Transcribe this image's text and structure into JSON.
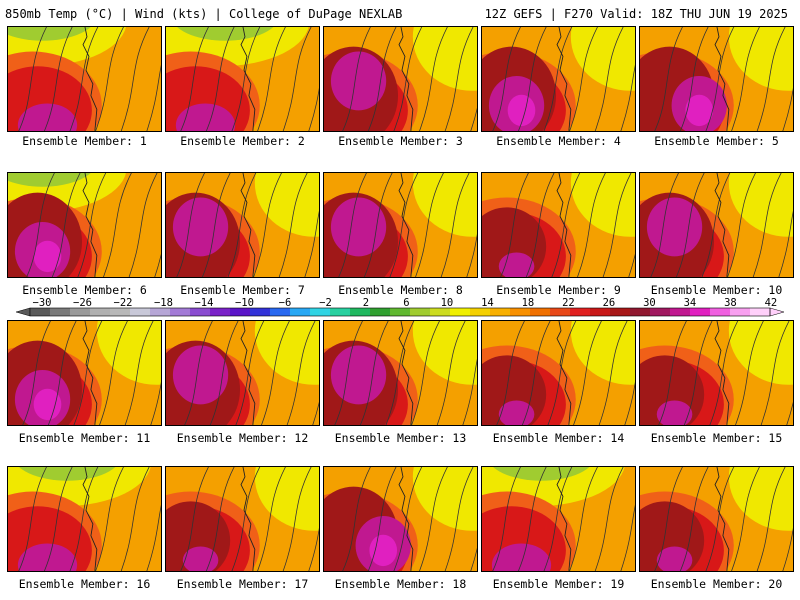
{
  "header": {
    "left_title": "850mb Temp (°C) | Wind (kts) | College of DuPage NEXLAB",
    "right_title": "12Z GEFS | F270 Valid: 18Z THU JUN 19 2025"
  },
  "members": [
    {
      "label": "Ensemble Member: 1",
      "scheme": "cool-nw"
    },
    {
      "label": "Ensemble Member: 2",
      "scheme": "cool-n"
    },
    {
      "label": "Ensemble Member: 3",
      "scheme": "hot-w"
    },
    {
      "label": "Ensemble Member: 4",
      "scheme": "hot-sw"
    },
    {
      "label": "Ensemble Member: 5",
      "scheme": "hot-s"
    },
    {
      "label": "Ensemble Member: 6",
      "scheme": "cool-nw-hot"
    },
    {
      "label": "Ensemble Member: 7",
      "scheme": "hot-w"
    },
    {
      "label": "Ensemble Member: 8",
      "scheme": "hot-w"
    },
    {
      "label": "Ensemble Member: 9",
      "scheme": "warm"
    },
    {
      "label": "Ensemble Member: 10",
      "scheme": "hot-w"
    },
    {
      "label": "Ensemble Member: 11",
      "scheme": "hot-sw"
    },
    {
      "label": "Ensemble Member: 12",
      "scheme": "hot-w"
    },
    {
      "label": "Ensemble Member: 13",
      "scheme": "hot-w"
    },
    {
      "label": "Ensemble Member: 14",
      "scheme": "warm"
    },
    {
      "label": "Ensemble Member: 15",
      "scheme": "warm"
    },
    {
      "label": "Ensemble Member: 16",
      "scheme": "cool-n"
    },
    {
      "label": "Ensemble Member: 17",
      "scheme": "warm"
    },
    {
      "label": "Ensemble Member: 18",
      "scheme": "hot-s"
    },
    {
      "label": "Ensemble Member: 19",
      "scheme": "cool-n"
    },
    {
      "label": "Ensemble Member: 20",
      "scheme": "warm"
    }
  ],
  "colorbar": {
    "tick_labels": [
      "−30",
      "−26",
      "−22",
      "−18",
      "−14",
      "−10",
      "−6",
      "−2",
      "2",
      "6",
      "10",
      "14",
      "18",
      "22",
      "26",
      "30",
      "34",
      "38",
      "42"
    ],
    "colors": [
      "#5a5a5a",
      "#7a7a7a",
      "#9a9a9a",
      "#b0b0b0",
      "#b8b8b8",
      "#c8c8d8",
      "#b6a6d6",
      "#a27ad6",
      "#8a4cd0",
      "#7a22c8",
      "#5a14c8",
      "#3232d8",
      "#2868f0",
      "#28a8f4",
      "#30d4e4",
      "#28d0a0",
      "#20b860",
      "#30a030",
      "#60b830",
      "#a0cc30",
      "#ccdc20",
      "#f0f000",
      "#f4d000",
      "#f8b000",
      "#f89000",
      "#f07000",
      "#e84818",
      "#e02020",
      "#c81818",
      "#a81818",
      "#901830",
      "#a01860",
      "#c01890",
      "#e020c0",
      "#f060e0",
      "#f8a0f0",
      "#ffd0fa"
    ]
  },
  "colors": {
    "yellow": "#f0e800",
    "orange": "#f4a000",
    "red_orange": "#f06018",
    "red": "#d81818",
    "dark_red": "#a01818",
    "magenta": "#c01890",
    "pink": "#e020c0",
    "green": "#30a030",
    "light_green": "#a0cc30"
  }
}
